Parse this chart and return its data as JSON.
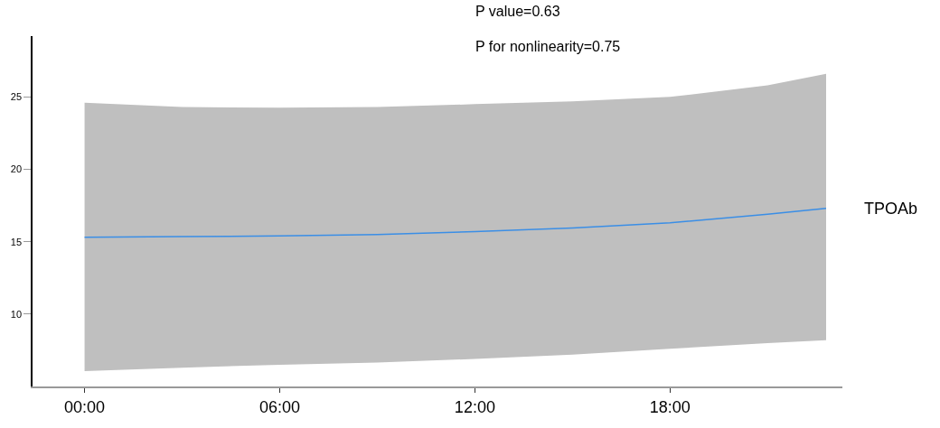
{
  "chart_data": {
    "type": "line",
    "x": [
      0,
      3,
      6,
      9,
      12,
      15,
      18,
      21,
      22.8
    ],
    "series": [
      {
        "name": "TPOAb",
        "color": "#3a8ee6",
        "values": [
          15.3,
          15.35,
          15.4,
          15.5,
          15.7,
          15.95,
          16.3,
          16.9,
          17.3
        ],
        "lower": [
          6.06,
          6.3,
          6.5,
          6.65,
          6.9,
          7.2,
          7.6,
          8.0,
          8.2
        ],
        "upper": [
          24.6,
          24.3,
          24.25,
          24.3,
          24.5,
          24.7,
          25.0,
          25.8,
          26.6
        ]
      }
    ],
    "xlim": [
      -1.6,
      23.3
    ],
    "xticks": [
      {
        "value": 0,
        "label": "00:00"
      },
      {
        "value": 6,
        "label": "06:00"
      },
      {
        "value": 12,
        "label": "12:00"
      },
      {
        "value": 18,
        "label": "18:00"
      }
    ],
    "ylim": [
      5,
      29.2
    ],
    "yticks": [
      10,
      15,
      20,
      25
    ],
    "annotations": [
      "P value=0.63",
      "P for nonlinearity=0.75"
    ],
    "legend": false,
    "marker": "none",
    "line_style": "solid"
  }
}
